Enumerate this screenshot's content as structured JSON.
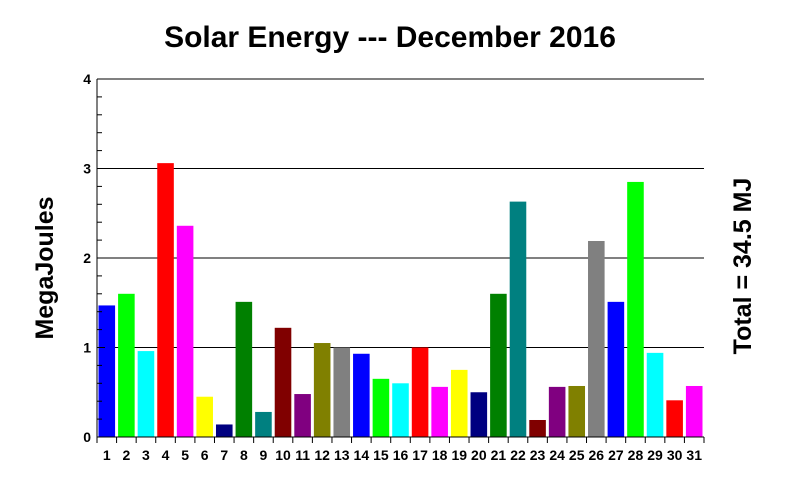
{
  "chart_data": {
    "type": "bar",
    "title": "Solar Energy --- December 2016",
    "xlabel": "",
    "ylabel": "MegaJoules",
    "annotation": "Total = 34.5 MJ",
    "ylim": [
      0,
      4
    ],
    "yticks": [
      "0",
      "1",
      "2",
      "3",
      "4"
    ],
    "grid": true,
    "legend": "none",
    "categories": [
      "1",
      "2",
      "3",
      "4",
      "5",
      "6",
      "7",
      "8",
      "9",
      "10",
      "11",
      "12",
      "13",
      "14",
      "15",
      "16",
      "17",
      "18",
      "19",
      "20",
      "21",
      "22",
      "23",
      "24",
      "25",
      "26",
      "27",
      "28",
      "29",
      "30",
      "31"
    ],
    "values": [
      1.47,
      1.6,
      0.96,
      3.06,
      2.36,
      0.45,
      0.14,
      1.51,
      0.28,
      1.22,
      0.48,
      1.05,
      1.0,
      0.93,
      0.65,
      0.6,
      1.0,
      0.56,
      0.75,
      0.5,
      1.6,
      2.63,
      0.19,
      0.56,
      0.57,
      2.19,
      1.51,
      2.85,
      0.94,
      0.41,
      0.57
    ],
    "colors": [
      "#0000ff",
      "#00ff00",
      "#00ffff",
      "#ff0000",
      "#ff00ff",
      "#ffff00",
      "#000080",
      "#008000",
      "#008080",
      "#800000",
      "#800080",
      "#808000",
      "#808080",
      "#0000ff",
      "#00ff00",
      "#00ffff",
      "#ff0000",
      "#ff00ff",
      "#ffff00",
      "#000080",
      "#008000",
      "#008080",
      "#800000",
      "#800080",
      "#808000",
      "#808080",
      "#0000ff",
      "#00ff00",
      "#00ffff",
      "#ff0000",
      "#ff00ff"
    ]
  }
}
